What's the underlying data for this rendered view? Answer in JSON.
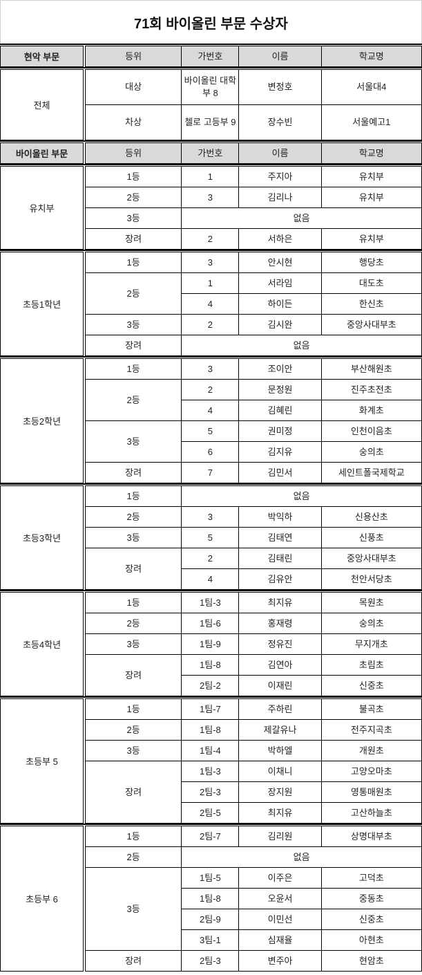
{
  "title": "71회 바이올린 부문 수상자",
  "columns": [
    "등위",
    "가번호",
    "이름",
    "학교명"
  ],
  "sections": [
    {
      "header": "현악 부문",
      "groups": [
        {
          "name": "전체",
          "tall": true,
          "ranks": [
            {
              "rank": "대상",
              "entries": [
                {
                  "num": "바이올린 대학부 8",
                  "name": "변정호",
                  "school": "서울대4"
                }
              ]
            },
            {
              "rank": "차상",
              "entries": [
                {
                  "num": "첼로 고등부 9",
                  "name": "장수빈",
                  "school": "서울예고1"
                }
              ]
            }
          ]
        }
      ]
    },
    {
      "header": "바이올린 부문",
      "groups": [
        {
          "name": "유치부",
          "ranks": [
            {
              "rank": "1등",
              "entries": [
                {
                  "num": "1",
                  "name": "주지아",
                  "school": "유치부"
                }
              ]
            },
            {
              "rank": "2등",
              "entries": [
                {
                  "num": "3",
                  "name": "김리나",
                  "school": "유치부"
                }
              ]
            },
            {
              "rank": "3등",
              "none": "없음"
            },
            {
              "rank": "장려",
              "entries": [
                {
                  "num": "2",
                  "name": "서하은",
                  "school": "유치부"
                }
              ]
            }
          ]
        },
        {
          "name": "초등1학년",
          "ranks": [
            {
              "rank": "1등",
              "entries": [
                {
                  "num": "3",
                  "name": "안시현",
                  "school": "행당초"
                }
              ]
            },
            {
              "rank": "2등",
              "entries": [
                {
                  "num": "1",
                  "name": "서라임",
                  "school": "대도초"
                },
                {
                  "num": "4",
                  "name": "하이든",
                  "school": "한신초"
                }
              ]
            },
            {
              "rank": "3등",
              "entries": [
                {
                  "num": "2",
                  "name": "김시완",
                  "school": "중앙사대부초"
                }
              ]
            },
            {
              "rank": "장려",
              "none": "없음"
            }
          ]
        },
        {
          "name": "초등2학년",
          "ranks": [
            {
              "rank": "1등",
              "entries": [
                {
                  "num": "3",
                  "name": "조이안",
                  "school": "부산해원초"
                }
              ]
            },
            {
              "rank": "2등",
              "entries": [
                {
                  "num": "2",
                  "name": "문정원",
                  "school": "진주초전초"
                },
                {
                  "num": "4",
                  "name": "김혜린",
                  "school": "화계초"
                }
              ]
            },
            {
              "rank": "3등",
              "entries": [
                {
                  "num": "5",
                  "name": "권미정",
                  "school": "인천이음초"
                },
                {
                  "num": "6",
                  "name": "김지유",
                  "school": "숭의초"
                }
              ]
            },
            {
              "rank": "장려",
              "entries": [
                {
                  "num": "7",
                  "name": "김민서",
                  "school": "세인트폴국제학교"
                }
              ]
            }
          ]
        },
        {
          "name": "초등3학년",
          "ranks": [
            {
              "rank": "1등",
              "none": "없음"
            },
            {
              "rank": "2등",
              "entries": [
                {
                  "num": "3",
                  "name": "박익하",
                  "school": "신용산초"
                }
              ]
            },
            {
              "rank": "3등",
              "entries": [
                {
                  "num": "5",
                  "name": "김태연",
                  "school": "신풍초"
                }
              ]
            },
            {
              "rank": "장려",
              "entries": [
                {
                  "num": "2",
                  "name": "김태린",
                  "school": "중앙사대부초"
                },
                {
                  "num": "4",
                  "name": "김유안",
                  "school": "천안서당초"
                }
              ]
            }
          ]
        },
        {
          "name": "초등4학년",
          "ranks": [
            {
              "rank": "1등",
              "entries": [
                {
                  "num": "1팀-3",
                  "name": "최지유",
                  "school": "목원초"
                }
              ]
            },
            {
              "rank": "2등",
              "entries": [
                {
                  "num": "1팀-6",
                  "name": "홍재령",
                  "school": "숭의초"
                }
              ]
            },
            {
              "rank": "3등",
              "entries": [
                {
                  "num": "1팀-9",
                  "name": "정유진",
                  "school": "무지개초"
                }
              ]
            },
            {
              "rank": "장려",
              "entries": [
                {
                  "num": "1팀-8",
                  "name": "김연아",
                  "school": "초림초"
                },
                {
                  "num": "2팀-2",
                  "name": "이재린",
                  "school": "신중초"
                }
              ]
            }
          ]
        },
        {
          "name": "초등부 5",
          "ranks": [
            {
              "rank": "1등",
              "entries": [
                {
                  "num": "1팀-7",
                  "name": "주하린",
                  "school": "불곡초"
                }
              ]
            },
            {
              "rank": "2등",
              "entries": [
                {
                  "num": "1팀-8",
                  "name": "제갈유나",
                  "school": "전주지곡초"
                }
              ]
            },
            {
              "rank": "3등",
              "entries": [
                {
                  "num": "1팀-4",
                  "name": "박하엘",
                  "school": "개원초"
                }
              ]
            },
            {
              "rank": "장려",
              "entries": [
                {
                  "num": "1팀-3",
                  "name": "이채니",
                  "school": "고양오마초"
                },
                {
                  "num": "2팀-3",
                  "name": "장지원",
                  "school": "영통매원초"
                },
                {
                  "num": "2팀-5",
                  "name": "최지유",
                  "school": "고산하늘초"
                }
              ]
            }
          ]
        },
        {
          "name": "초등부 6",
          "ranks": [
            {
              "rank": "1등",
              "entries": [
                {
                  "num": "2팀-7",
                  "name": "김리원",
                  "school": "상명대부초"
                }
              ]
            },
            {
              "rank": "2등",
              "none": "없음"
            },
            {
              "rank": "3등",
              "entries": [
                {
                  "num": "1팀-5",
                  "name": "이주은",
                  "school": "고덕초"
                },
                {
                  "num": "1팀-8",
                  "name": "오윤서",
                  "school": "중동초"
                },
                {
                  "num": "2팀-9",
                  "name": "이민선",
                  "school": "신중초"
                },
                {
                  "num": "3팀-1",
                  "name": "심재율",
                  "school": "아현초"
                }
              ]
            },
            {
              "rank": "장려",
              "entries": [
                {
                  "num": "2팀-3",
                  "name": "변주아",
                  "school": "현암초"
                }
              ]
            }
          ]
        }
      ]
    }
  ]
}
